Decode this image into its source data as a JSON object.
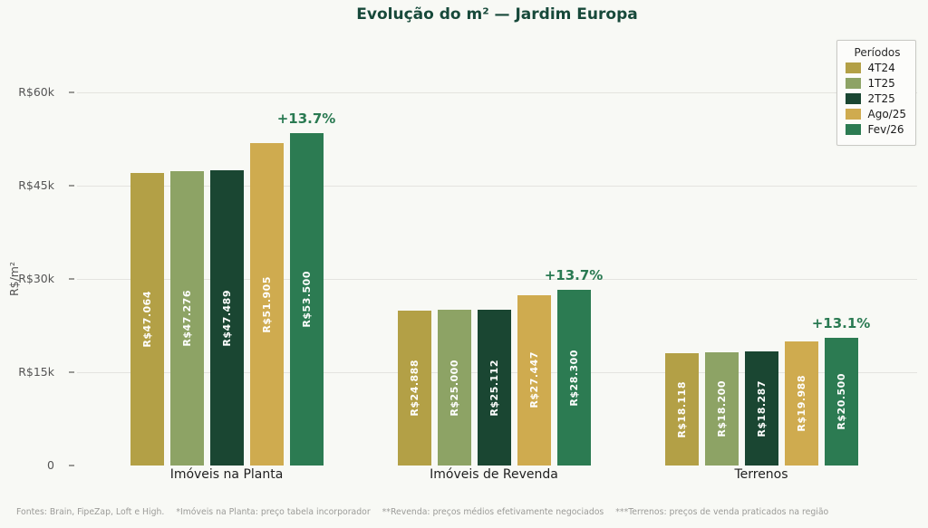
{
  "chart_data": {
    "type": "bar",
    "title": "Evolução do m² — Jardim Europa",
    "ylabel": "R$/m²",
    "xlabel": "",
    "ylim": [
      0,
      60000
    ],
    "grid": true,
    "legend_position": "top-right",
    "yticks": [
      {
        "value": 0,
        "label": "0"
      },
      {
        "value": 15000,
        "label": "R$15k"
      },
      {
        "value": 30000,
        "label": "R$30k"
      },
      {
        "value": 45000,
        "label": "R$45k"
      },
      {
        "value": 60000,
        "label": "R$60k"
      }
    ],
    "categories": [
      "Imóveis na Planta",
      "Imóveis de Revenda",
      "Terrenos"
    ],
    "series": [
      {
        "name": "4T24",
        "color": "#b3a046",
        "values": [
          47064,
          24888,
          18118
        ],
        "labels": [
          "R$47.064",
          "R$24.888",
          "R$18.118"
        ]
      },
      {
        "name": "1T25",
        "color": "#8da365",
        "values": [
          47276,
          25000,
          18200
        ],
        "labels": [
          "R$47.276",
          "R$25.000",
          "R$18.200"
        ]
      },
      {
        "name": "2T25",
        "color": "#1a4632",
        "values": [
          47489,
          25112,
          18287
        ],
        "labels": [
          "R$47.489",
          "R$25.112",
          "R$18.287"
        ]
      },
      {
        "name": "Ago/25",
        "color": "#cfab4f",
        "values": [
          51905,
          27447,
          19988
        ],
        "labels": [
          "R$51.905",
          "R$27.447",
          "R$19.988"
        ]
      },
      {
        "name": "Fev/26",
        "color": "#2c7b52",
        "values": [
          53500,
          28300,
          20500
        ],
        "labels": [
          "R$53.500",
          "R$28.300",
          "R$20.500"
        ]
      }
    ],
    "annotations": [
      "+13.7%",
      "+13.7%",
      "+13.1%"
    ],
    "annotation_color": "#2a7a52"
  },
  "legend": {
    "title": "Períodos",
    "items": [
      "4T24",
      "1T25",
      "2T25",
      "Ago/25",
      "Fev/26"
    ]
  },
  "footer": {
    "segments": [
      "Fontes: Brain, FipeZap, Loft e High.",
      "*Imóveis na Planta: preço tabela incorporador",
      "**Revenda: preços médios efetivamente negociados",
      "***Terrenos: preços de venda praticados na região"
    ]
  }
}
